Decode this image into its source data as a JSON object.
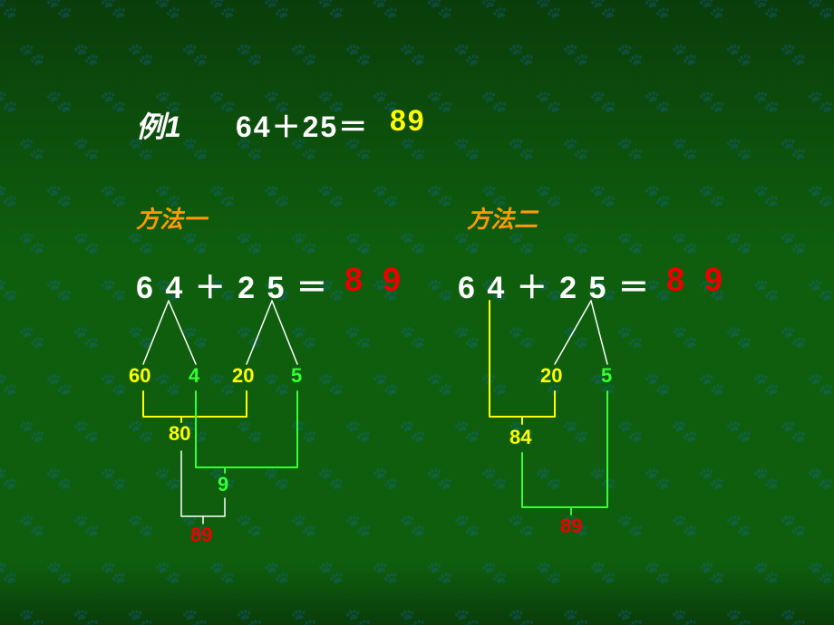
{
  "colors": {
    "white": "#ffffff",
    "yellow": "#ffff00",
    "orange": "#ff9900",
    "green": "#33ff33",
    "red": "#ee0000",
    "bg_top": "#0a3d0a",
    "bg_mid": "#0e5e0e",
    "paw": "#2a7a2a",
    "line_white": "#ffffff",
    "line_green": "#33ff33",
    "line_yellow": "#ffff00"
  },
  "header": {
    "label": "例1",
    "eq_left": "64＋25＝",
    "eq_result": "89"
  },
  "method1": {
    "title": "方法一",
    "eq_left": "6 4 ＋ 2 5 ＝",
    "eq_result": "8 9",
    "split": {
      "a_tens": "60",
      "a_ones": "4",
      "b_tens": "20",
      "b_ones": "5",
      "tens_sum": "80",
      "ones_sum": "9",
      "total": "89"
    }
  },
  "method2": {
    "title": "方法二",
    "eq_left": "6 4 ＋ 2 5 ＝",
    "eq_result": "8 9",
    "split": {
      "b_tens": "20",
      "b_ones": "5",
      "step1": "84",
      "total": "89"
    }
  },
  "diagram_style": {
    "line_width_white": 1.5,
    "line_width_color": 2
  }
}
